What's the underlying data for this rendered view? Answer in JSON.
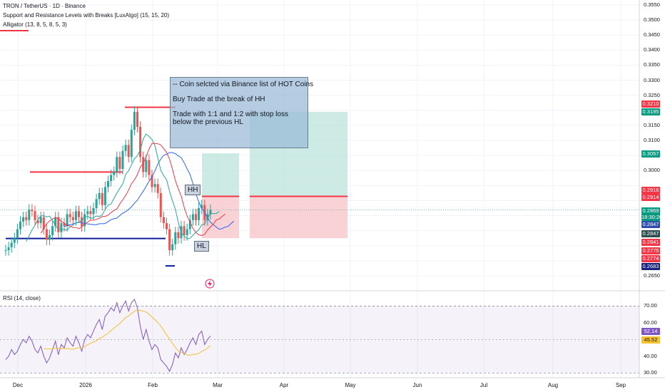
{
  "legend": {
    "symbol": "TRON / TetherUS · 1D · Binance",
    "indicator1": "Support and Resistance Levels with Breaks [LuxAlgo] (15, 15, 20)",
    "indicator2": "Alligator (13, 8, 5, 8, 5, 3)",
    "rsi": "RSI (14, close)"
  },
  "note": {
    "line1": "-- Coin selcted via Binance list of HOT Coins",
    "line2": "Buy Trade at the break of HH",
    "line3": "Trade with 1:1 and 1:2 with stop loss",
    "line4": "below the previous HL"
  },
  "tags": {
    "hh": "HH",
    "hl": "HL"
  },
  "colors": {
    "up": "#26a69a",
    "down": "#ef5350",
    "resistance": "#f23645",
    "support": "#0d1e9c",
    "jaw": "#2962ff",
    "teeth": "#f23645",
    "lips": "#26a69a",
    "target": "#b2e0d6",
    "stop": "#f8c7cb",
    "rsi": "#7e57c2",
    "rsi_ma": "#f5c12c"
  },
  "price_axis": {
    "ticks": [
      "0.3550",
      "0.3500",
      "0.3450",
      "0.3400",
      "0.3350",
      "0.3300",
      "0.3250",
      "0.3150",
      "0.3100",
      "0.3000",
      "0.2650"
    ],
    "badges": [
      {
        "text": "0.3210",
        "color": "#f23645"
      },
      {
        "text": "0.3195",
        "color": "#089981"
      },
      {
        "text": "0.3057",
        "color": "#089981"
      },
      {
        "text": "0.2916",
        "color": "#f23645"
      },
      {
        "text": "0.2914",
        "color": "#f23645"
      },
      {
        "text": "0.2869",
        "sub": "18:30:20",
        "color": "#089981"
      },
      {
        "text": "0.2847",
        "color": "#2f4fa8"
      },
      {
        "text": "0.2847",
        "color": "#2f4f4f"
      },
      {
        "text": "0.2841",
        "color": "#f23645"
      },
      {
        "text": "0.2775",
        "color": "#f23645"
      },
      {
        "text": "0.2774",
        "color": "#f23645"
      },
      {
        "text": "0.2683",
        "color": "#1a237e"
      }
    ]
  },
  "rsi_axis": {
    "ticks": [
      "70.00",
      "60.00",
      "40.00",
      "30.00"
    ],
    "badges": [
      {
        "text": "52.14",
        "color": "#7e57c2"
      },
      {
        "text": "45.52",
        "color": "#f5c12c"
      }
    ]
  },
  "time_axis": [
    "Dec",
    "2026",
    "Feb",
    "Mar",
    "Apr",
    "May",
    "Jun",
    "Jul",
    "Aug",
    "Sep"
  ],
  "chart_data": {
    "type": "candlestick",
    "title": "TRON / TetherUS · 1D · Binance",
    "ylim": [
      0.262,
      0.357
    ],
    "closes": [
      0.2735,
      0.2745,
      0.276,
      0.2775,
      0.2805,
      0.283,
      0.2845,
      0.2835,
      0.287,
      0.2865,
      0.2835,
      0.2825,
      0.2845,
      0.2805,
      0.277,
      0.2785,
      0.2815,
      0.2845,
      0.2795,
      0.2825,
      0.2815,
      0.2855,
      0.2845,
      0.2835,
      0.2865,
      0.2845,
      0.2815,
      0.2855,
      0.2865,
      0.2855,
      0.2875,
      0.2905,
      0.2925,
      0.2885,
      0.2945,
      0.2965,
      0.2985,
      0.2995,
      0.3045,
      0.3005,
      0.3065,
      0.3085,
      0.3045,
      0.3135,
      0.3195,
      0.3145,
      0.3045,
      0.2995,
      0.3035,
      0.2985,
      0.2945,
      0.2955,
      0.2925,
      0.2845,
      0.2825,
      0.2805,
      0.2735,
      0.2755,
      0.2795,
      0.2775,
      0.2815,
      0.2785,
      0.2805,
      0.2835,
      0.2855,
      0.2835,
      0.2875,
      0.2885,
      0.2835,
      0.2855,
      0.2869
    ],
    "resistance_levels": [
      0.2916,
      0.321
    ],
    "support_levels": [
      0.2774,
      0.2775,
      0.2683
    ],
    "trade_setup": {
      "entry": 0.2914,
      "stop": 0.2775,
      "target_1to1": 0.3057,
      "target_1to2": 0.3195
    },
    "rsi": {
      "ylim": [
        28,
        74
      ],
      "bands": [
        30,
        70
      ],
      "last": 52.14,
      "ma_last": 45.52,
      "values": [
        38,
        40,
        44,
        41,
        43,
        47,
        50,
        48,
        52,
        49,
        44,
        42,
        46,
        40,
        36,
        39,
        44,
        49,
        41,
        47,
        45,
        51,
        48,
        46,
        52,
        48,
        43,
        50,
        53,
        51,
        55,
        59,
        62,
        56,
        64,
        66,
        69,
        67,
        72,
        66,
        70,
        73,
        67,
        72,
        74,
        69,
        58,
        50,
        56,
        49,
        44,
        47,
        45,
        38,
        36,
        34,
        31,
        35,
        42,
        39,
        45,
        41,
        44,
        48,
        51,
        47,
        53,
        55,
        47,
        50,
        52.14
      ]
    }
  }
}
